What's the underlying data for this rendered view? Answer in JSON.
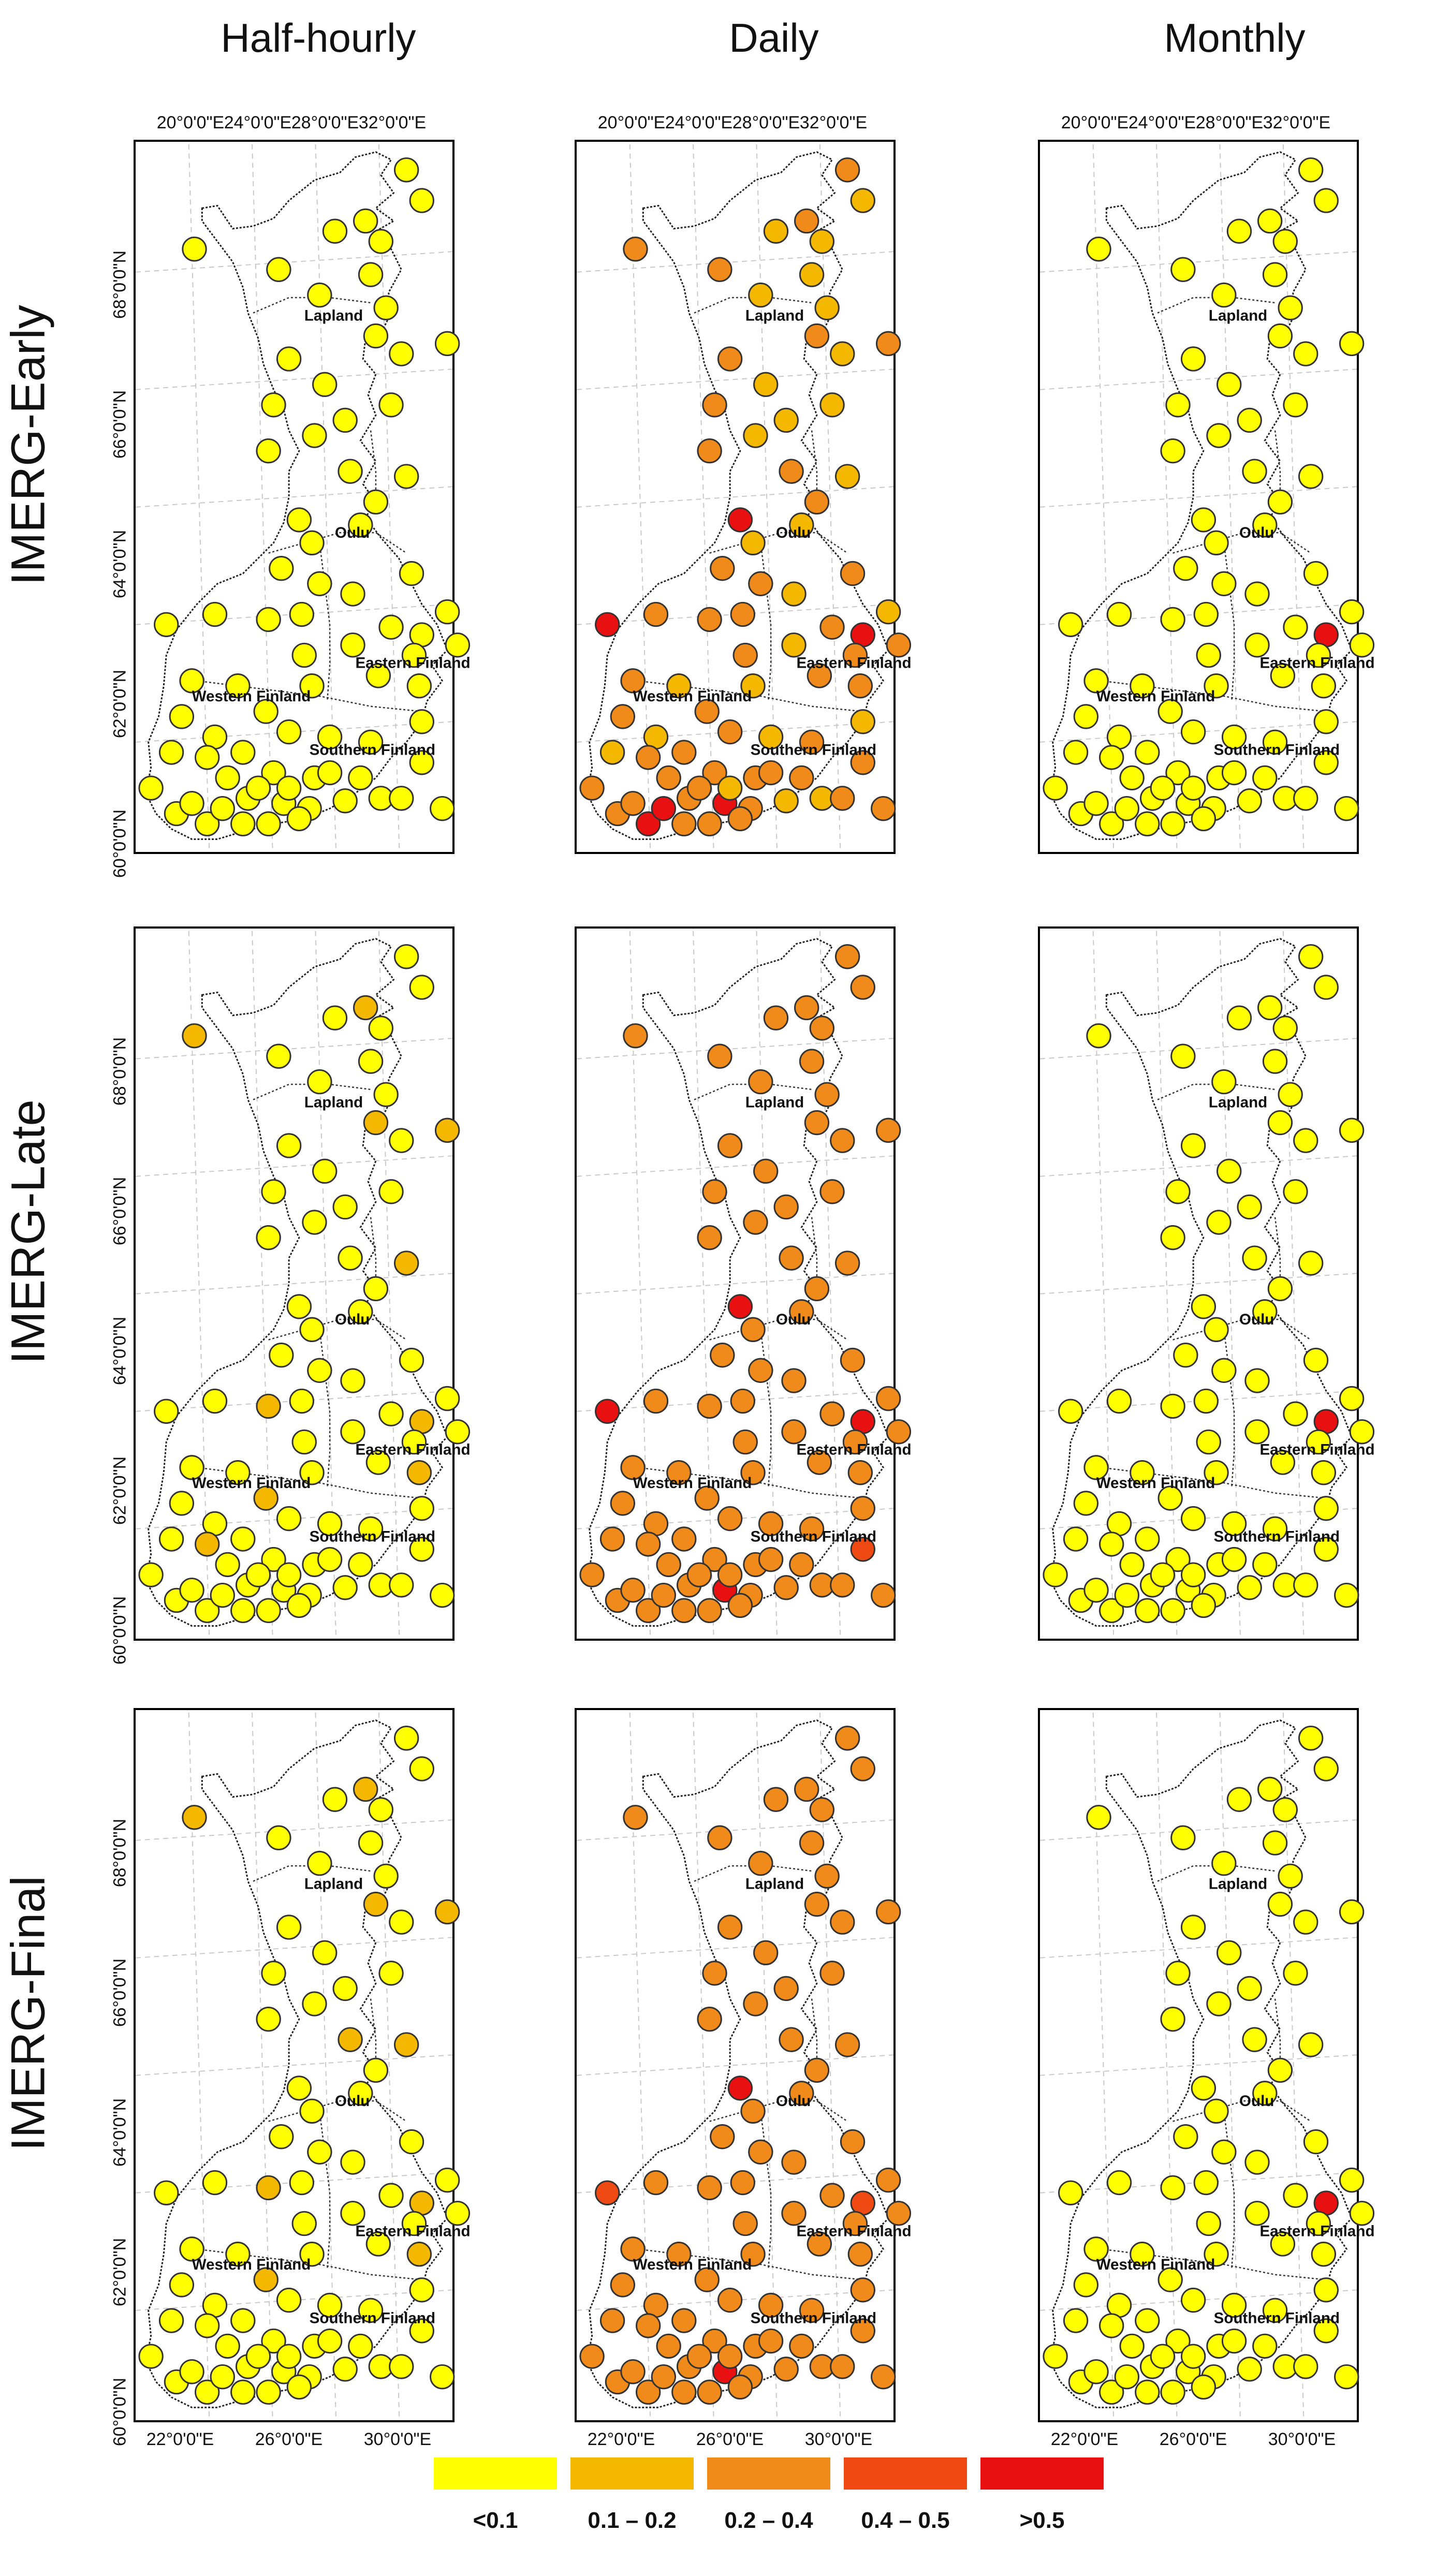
{
  "columns": [
    "Half-hourly",
    "Daily",
    "Monthly"
  ],
  "rows": [
    "IMERG-Early",
    "IMERG-Late",
    "IMERG-Final"
  ],
  "top_lon_labels": [
    "20°0'0\"E",
    "24°0'0\"E",
    "28°0'0\"E",
    "32°0'0\"E"
  ],
  "bottom_lon_labels": [
    "22°0'0\"E",
    "26°0'0\"E",
    "30°0'0\"E"
  ],
  "lat_labels": [
    "68°0'0\"N",
    "66°0'0\"N",
    "64°0'0\"N",
    "62°0'0\"N",
    "60°0'0\"N"
  ],
  "regions": [
    "Lapland",
    "Oulu",
    "Eastern Finland",
    "Western Finland",
    "Southern Finland"
  ],
  "legend": [
    {
      "label": "<0.1",
      "color": "#ffff00"
    },
    {
      "label": "0.1 – 0.2",
      "color": "#f5b800"
    },
    {
      "label": "0.2 – 0.4",
      "color": "#f08a1a"
    },
    {
      "label": "0.4 – 0.5",
      "color": "#f04a14"
    },
    {
      "label": ">0.5",
      "color": "#e81010"
    }
  ],
  "stations_classes": {
    "early": {
      "half_hourly": [
        0,
        0,
        0,
        0,
        0,
        0,
        0,
        0,
        0,
        0,
        0,
        0,
        0,
        0,
        0,
        0,
        0,
        0,
        0,
        0,
        0,
        0,
        0,
        0,
        0,
        0,
        0,
        0,
        0,
        0,
        0,
        0,
        0,
        0,
        0,
        0,
        0,
        0,
        0,
        0,
        0,
        0,
        0,
        0,
        0,
        0,
        0,
        0,
        0,
        0,
        0,
        0,
        0,
        0,
        0,
        0,
        0,
        0,
        0,
        0,
        0,
        0,
        0,
        0,
        0,
        0,
        0,
        0,
        0,
        0,
        0,
        0,
        0,
        0,
        0,
        0,
        0,
        0,
        0
      ],
      "daily": [
        2,
        1,
        2,
        1,
        1,
        2,
        1,
        2,
        1,
        1,
        2,
        1,
        2,
        1,
        2,
        1,
        1,
        1,
        2,
        2,
        2,
        1,
        2,
        1,
        4,
        2,
        1,
        2,
        1,
        2,
        2,
        1,
        2,
        4,
        1,
        2,
        2,
        4,
        2,
        2,
        2,
        2,
        2,
        2,
        1,
        1,
        2,
        2,
        1,
        2,
        1,
        2,
        1,
        1,
        2,
        2,
        2,
        2,
        4,
        2,
        1,
        1,
        2,
        2,
        4,
        2,
        2,
        2,
        4,
        2,
        2,
        2,
        1,
        2,
        2,
        2,
        2,
        2,
        2
      ],
      "monthly": [
        0,
        0,
        0,
        0,
        0,
        0,
        0,
        0,
        0,
        0,
        0,
        0,
        0,
        0,
        0,
        0,
        0,
        0,
        0,
        0,
        0,
        0,
        0,
        0,
        0,
        0,
        0,
        0,
        0,
        0,
        0,
        0,
        0,
        4,
        0,
        0,
        0,
        0,
        0,
        0,
        0,
        0,
        0,
        0,
        0,
        0,
        0,
        0,
        0,
        0,
        0,
        0,
        0,
        0,
        0,
        0,
        0,
        0,
        0,
        0,
        0,
        0,
        0,
        0,
        0,
        0,
        0,
        0,
        0,
        0,
        0,
        0,
        0,
        0,
        0,
        0,
        0,
        0,
        0
      ]
    },
    "late": {
      "half_hourly": [
        0,
        0,
        1,
        0,
        0,
        0,
        0,
        1,
        0,
        0,
        1,
        0,
        0,
        0,
        1,
        0,
        0,
        0,
        0,
        0,
        0,
        1,
        0,
        0,
        0,
        0,
        0,
        0,
        0,
        0,
        0,
        0,
        0,
        1,
        0,
        1,
        0,
        0,
        0,
        0,
        0,
        0,
        1,
        0,
        0,
        0,
        1,
        0,
        0,
        0,
        0,
        0,
        0,
        0,
        0,
        0,
        0,
        0,
        0,
        0,
        0,
        0,
        0,
        0,
        0,
        0,
        0,
        0,
        0,
        0,
        0,
        0,
        0,
        0,
        0,
        1,
        0,
        0,
        0
      ],
      "daily": [
        2,
        2,
        2,
        2,
        2,
        2,
        2,
        2,
        2,
        2,
        2,
        2,
        2,
        2,
        2,
        2,
        2,
        2,
        2,
        2,
        2,
        2,
        2,
        2,
        4,
        2,
        2,
        2,
        2,
        2,
        2,
        2,
        2,
        4,
        2,
        2,
        2,
        4,
        2,
        2,
        2,
        2,
        2,
        2,
        2,
        2,
        2,
        2,
        2,
        2,
        2,
        2,
        2,
        2,
        2,
        2,
        2,
        2,
        4,
        2,
        2,
        2,
        2,
        2,
        2,
        2,
        2,
        2,
        2,
        2,
        2,
        2,
        2,
        2,
        2,
        2,
        2,
        3,
        2
      ],
      "monthly": [
        0,
        0,
        0,
        0,
        0,
        0,
        0,
        0,
        0,
        0,
        0,
        0,
        0,
        0,
        0,
        0,
        0,
        0,
        0,
        0,
        0,
        0,
        0,
        0,
        0,
        0,
        0,
        0,
        0,
        0,
        0,
        0,
        0,
        4,
        0,
        0,
        0,
        0,
        0,
        0,
        0,
        0,
        0,
        0,
        0,
        0,
        0,
        0,
        0,
        0,
        0,
        0,
        0,
        0,
        0,
        0,
        0,
        0,
        0,
        0,
        0,
        0,
        0,
        0,
        0,
        0,
        0,
        0,
        0,
        0,
        0,
        0,
        0,
        0,
        0,
        0,
        0,
        0,
        0
      ]
    },
    "final": {
      "half_hourly": [
        0,
        0,
        1,
        0,
        0,
        0,
        0,
        1,
        0,
        0,
        1,
        0,
        0,
        0,
        1,
        0,
        0,
        0,
        0,
        0,
        1,
        1,
        0,
        0,
        0,
        0,
        0,
        0,
        0,
        0,
        0,
        0,
        0,
        1,
        0,
        1,
        0,
        0,
        0,
        0,
        0,
        0,
        1,
        0,
        0,
        0,
        1,
        0,
        0,
        0,
        0,
        0,
        0,
        0,
        0,
        0,
        0,
        0,
        0,
        0,
        0,
        0,
        0,
        0,
        0,
        0,
        0,
        0,
        0,
        0,
        0,
        0,
        0,
        0,
        0,
        0,
        0,
        0,
        0
      ],
      "daily": [
        2,
        2,
        2,
        2,
        2,
        2,
        2,
        2,
        2,
        2,
        2,
        2,
        2,
        2,
        2,
        2,
        2,
        2,
        2,
        2,
        2,
        2,
        2,
        2,
        4,
        2,
        2,
        2,
        2,
        2,
        2,
        2,
        2,
        3,
        2,
        2,
        2,
        3,
        2,
        2,
        2,
        2,
        2,
        2,
        2,
        2,
        2,
        2,
        2,
        2,
        2,
        2,
        2,
        2,
        2,
        2,
        2,
        2,
        4,
        2,
        2,
        2,
        2,
        2,
        2,
        2,
        2,
        2,
        2,
        2,
        2,
        2,
        2,
        2,
        2,
        2,
        2,
        2,
        2
      ],
      "monthly": [
        0,
        0,
        0,
        0,
        0,
        0,
        0,
        0,
        0,
        0,
        0,
        0,
        0,
        0,
        0,
        0,
        0,
        0,
        0,
        0,
        0,
        0,
        0,
        0,
        0,
        0,
        0,
        0,
        0,
        0,
        0,
        0,
        0,
        4,
        0,
        0,
        0,
        0,
        0,
        0,
        0,
        0,
        0,
        0,
        0,
        0,
        0,
        0,
        0,
        0,
        0,
        0,
        0,
        0,
        0,
        0,
        0,
        0,
        0,
        0,
        0,
        0,
        0,
        0,
        0,
        0,
        0,
        0,
        0,
        0,
        0,
        0,
        0,
        0,
        0,
        0,
        0,
        0,
        0
      ]
    }
  }
}
